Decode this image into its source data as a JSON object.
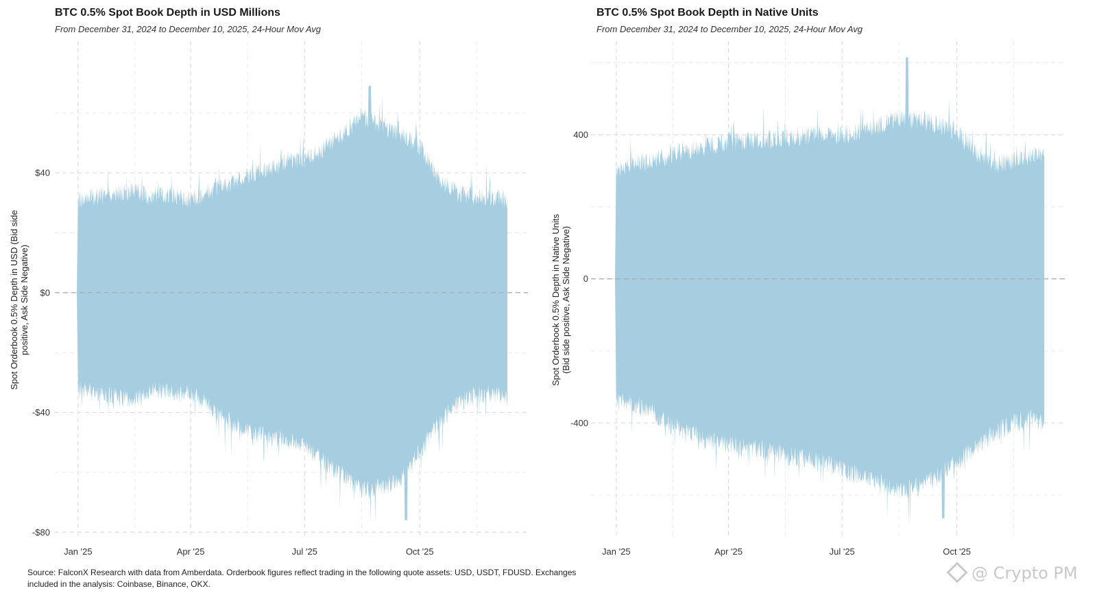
{
  "chart_data": [
    {
      "type": "area",
      "title": "BTC 0.5% Spot Book Depth in USD Millions",
      "subtitle": "From December 31, 2024 to December 10, 2025, 24-Hour Mov Avg",
      "ylabel_line1": "Spot Orderbook 0.5% Depth in USD (Bid side",
      "ylabel_line2": "positive, Ask Side Negative)",
      "ylim": [
        -82,
        84
      ],
      "yticks": [
        40,
        0,
        -40,
        -80
      ],
      "ytick_labels": [
        "$40",
        "$0",
        "-$40",
        "-$80"
      ],
      "xticks": [
        "2025-01-01",
        "2025-04-01",
        "2025-07-01",
        "2025-10-01"
      ],
      "xtick_labels": [
        "Jan '25",
        "Apr '25",
        "Jul '25",
        "Oct '25"
      ],
      "x_range": [
        "2024-12-31",
        "2025-12-10"
      ],
      "grid": true,
      "color": "#a6cee0",
      "series": [
        {
          "x": [
            "2025-01-01",
            "2025-01-15",
            "2025-02-01",
            "2025-02-15",
            "2025-03-01",
            "2025-03-15",
            "2025-04-01",
            "2025-04-15",
            "2025-05-01",
            "2025-05-15",
            "2025-06-01",
            "2025-06-15",
            "2025-07-01",
            "2025-07-15",
            "2025-08-01",
            "2025-08-15",
            "2025-09-01",
            "2025-09-15",
            "2025-10-01",
            "2025-10-15",
            "2025-11-01",
            "2025-11-15",
            "2025-12-01",
            "2025-12-10"
          ],
          "upper": [
            30,
            31,
            32,
            33,
            31,
            32,
            30,
            33,
            35,
            38,
            40,
            43,
            44,
            47,
            52,
            58,
            55,
            52,
            48,
            38,
            32,
            31,
            31,
            30
          ],
          "lower": [
            -31,
            -33,
            -34,
            -35,
            -32,
            -32,
            -33,
            -37,
            -42,
            -45,
            -47,
            -48,
            -50,
            -55,
            -60,
            -65,
            -64,
            -62,
            -52,
            -43,
            -36,
            -33,
            -33,
            -35
          ],
          "peak_upper": 69,
          "peak_lower": -76
        }
      ]
    },
    {
      "type": "area",
      "title": "BTC 0.5% Spot Book Depth in Native Units",
      "subtitle": "From December 31, 2024 to December 10, 2025, 24-Hour Mov Avg",
      "ylabel_line1": "Spot Orderbook 0.5% Depth in Native Units",
      "ylabel_line2": "(Bid side positive, Ask Side Negative)",
      "ylim": [
        -720,
        660
      ],
      "yticks": [
        400,
        0,
        -400
      ],
      "ytick_labels": [
        "400",
        "0",
        "-400"
      ],
      "xticks": [
        "2025-01-01",
        "2025-04-01",
        "2025-07-01",
        "2025-10-01"
      ],
      "xtick_labels": [
        "Jan '25",
        "Apr '25",
        "Jul '25",
        "Oct '25"
      ],
      "x_range": [
        "2024-12-31",
        "2025-12-10"
      ],
      "grid": true,
      "color": "#a6cee0",
      "series": [
        {
          "x": [
            "2025-01-01",
            "2025-01-15",
            "2025-02-01",
            "2025-02-15",
            "2025-03-01",
            "2025-03-15",
            "2025-04-01",
            "2025-04-15",
            "2025-05-01",
            "2025-05-15",
            "2025-06-01",
            "2025-06-15",
            "2025-07-01",
            "2025-07-15",
            "2025-08-01",
            "2025-08-15",
            "2025-09-01",
            "2025-09-15",
            "2025-10-01",
            "2025-10-15",
            "2025-11-01",
            "2025-11-15",
            "2025-12-01",
            "2025-12-10"
          ],
          "upper": [
            300,
            310,
            320,
            340,
            350,
            360,
            370,
            375,
            380,
            385,
            390,
            390,
            395,
            400,
            420,
            440,
            430,
            420,
            400,
            350,
            310,
            320,
            340,
            330
          ],
          "lower": [
            -320,
            -340,
            -370,
            -400,
            -420,
            -440,
            -450,
            -460,
            -470,
            -480,
            -490,
            -500,
            -520,
            -540,
            -560,
            -580,
            -570,
            -540,
            -500,
            -460,
            -420,
            -390,
            -380,
            -400
          ],
          "peak_upper": 615,
          "peak_lower": -665
        }
      ]
    }
  ],
  "source_line1": "Source: FalconX Research with data from Amberdata. Orderbook figures reflect trading in the following quote assets: USD, USDT, FDUSD. Exchanges",
  "source_line2": "included in the analysis: Coinbase, Binance, OKX.",
  "watermark": "@ Crypto PM"
}
